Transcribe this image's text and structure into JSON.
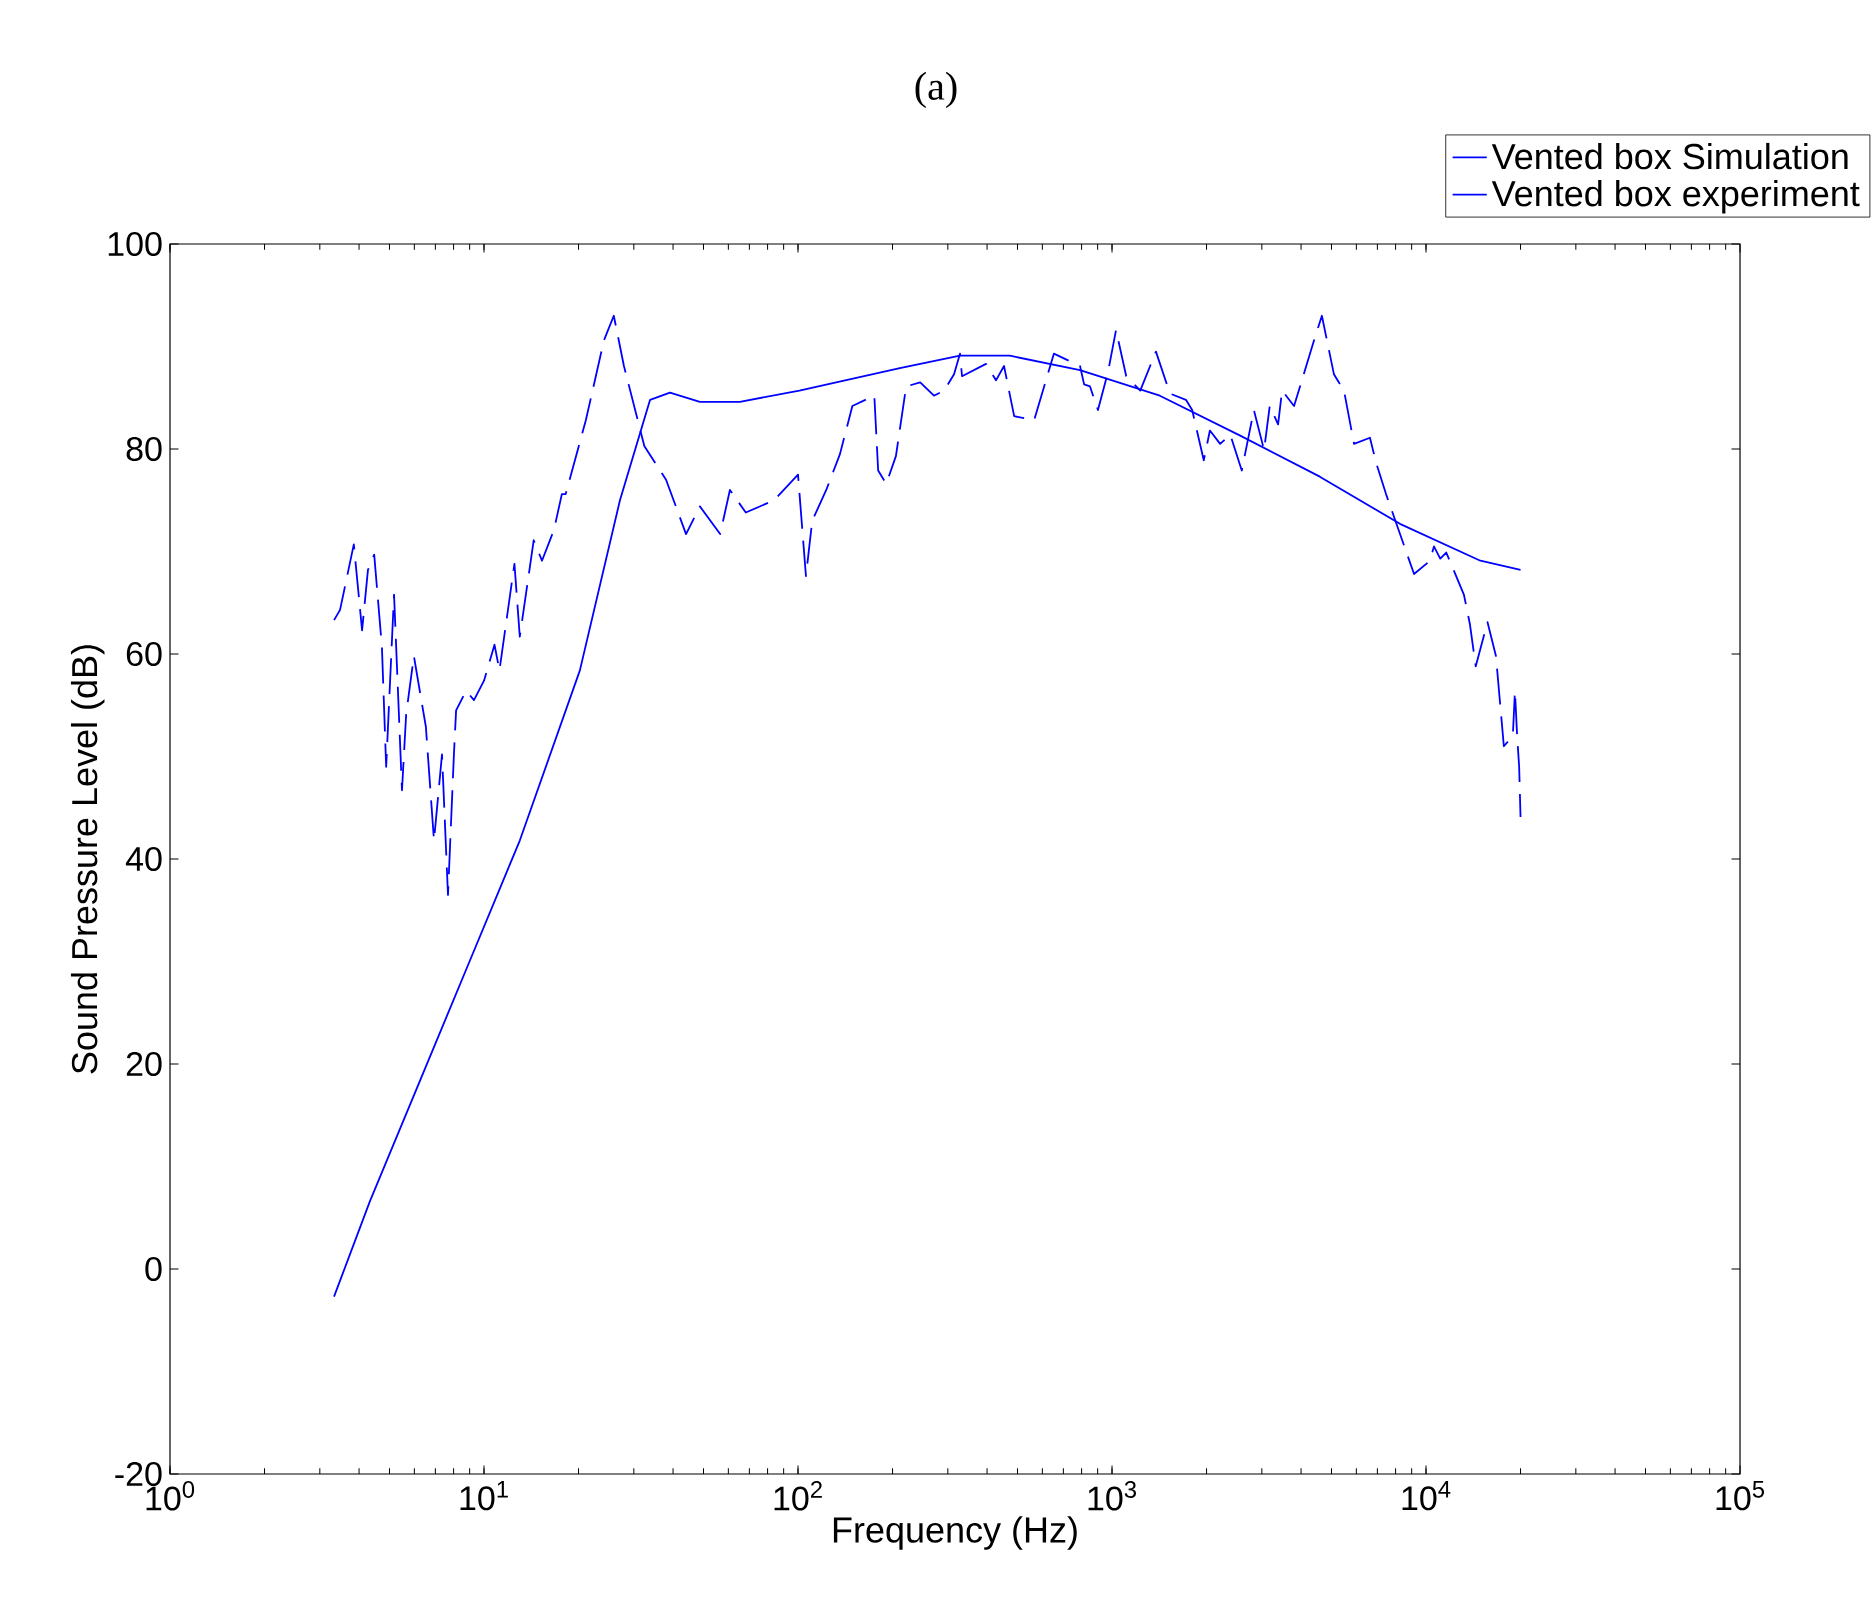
{
  "chart_data": {
    "type": "line",
    "title": "(a)",
    "xlabel": "Frequency (Hz)",
    "ylabel": "Sound Pressure Level (dB)",
    "log": "x",
    "legend": "top right",
    "xlim": [
      1,
      100000
    ],
    "ylim": [
      -20,
      100
    ],
    "xticks": [
      {
        "value": 1,
        "label": "10$^{0}$"
      },
      {
        "value": 10,
        "label": "10$^{1}$"
      },
      {
        "value": 100,
        "label": "10$^{2}$"
      },
      {
        "value": 1000,
        "label": "10$^{3}$"
      },
      {
        "value": 10000,
        "label": "10$^{4}$"
      },
      {
        "value": 100000,
        "label": "10$^{5}$"
      }
    ],
    "yticks": [
      -20,
      0,
      20,
      40,
      60,
      80,
      100
    ],
    "series": [
      {
        "name": "Vented box Simulation",
        "color": "#0000ff",
        "line_style": "solid",
        "x": [
          3.33,
          4.33,
          6.26,
          9.02,
          13.0,
          20.2,
          27.1,
          33.8,
          39.1,
          48.7,
          65.3,
          101,
          211,
          328,
          473,
          791,
          1420,
          2560,
          4590,
          8260,
          14900,
          20000
        ],
        "values": [
          -2.7,
          6.6,
          18.4,
          30.1,
          41.8,
          58.4,
          75,
          84.8,
          85.5,
          84.6,
          84.6,
          85.7,
          87.9,
          89.1,
          89.1,
          87.7,
          85.2,
          81.3,
          77.3,
          72.7,
          69.1,
          68.2
        ]
      },
      {
        "name": "Vented box experiment",
        "color": "#0000ff",
        "line_style": "dashed",
        "x": [
          3.33,
          3.48,
          3.85,
          4.09,
          4.27,
          4.47,
          4.73,
          4.88,
          5.17,
          5.48,
          5.65,
          5.98,
          6.53,
          6.93,
          7.35,
          7.68,
          8.02,
          8.15,
          8.77,
          9.29,
          10.0,
          10.8,
          11.2,
          12.5,
          13.0,
          14.4,
          15.3,
          16.7,
          17.7,
          18.2,
          21.1,
          24.1,
          25.9,
          27.9,
          32.4,
          38.0,
          44.0,
          48.7,
          56.5,
          60.7,
          68.2,
          83.9,
          100,
          106,
          111,
          123,
          136,
          149,
          175,
          180,
          191,
          205,
          221,
          245,
          271,
          292,
          314,
          328,
          333,
          397,
          427,
          453,
          488,
          565,
          653,
          791,
          815,
          851,
          902,
          971,
          1030,
          1110,
          1230,
          1380,
          1530,
          1720,
          1800,
          1960,
          2050,
          2210,
          2380,
          2590,
          2830,
          3050,
          3180,
          3380,
          3480,
          3800,
          4080,
          4400,
          4660,
          5090,
          5480,
          5900,
          6630,
          6930,
          7460,
          9160,
          10300,
          10600,
          11100,
          11600,
          13200,
          13800,
          14400,
          15700,
          16700,
          17700,
          18900,
          19200,
          19500,
          19800,
          20000
        ],
        "values": [
          63.3,
          64.3,
          70.7,
          62.3,
          68.2,
          69.7,
          60.7,
          49,
          65.8,
          46.7,
          54.1,
          59.8,
          52.9,
          41.8,
          50.2,
          36.5,
          50.2,
          54.5,
          56.4,
          55.5,
          57.4,
          60.9,
          58.4,
          68.8,
          61.7,
          71.1,
          69.1,
          72.1,
          75.6,
          75.6,
          82.8,
          90.6,
          93,
          88.1,
          80.3,
          77,
          71.7,
          74.4,
          71.7,
          76,
          73.8,
          75,
          77.5,
          67.6,
          73,
          76,
          79.5,
          84.2,
          85.2,
          77.9,
          76.6,
          79.3,
          86.1,
          86.5,
          85.2,
          85.7,
          87.3,
          89.3,
          87.1,
          88.3,
          86.7,
          88.1,
          83.2,
          82.8,
          89.3,
          88.1,
          86.3,
          86.1,
          83.8,
          87.5,
          91.6,
          87.1,
          85.7,
          89.5,
          85.4,
          84.8,
          83.8,
          78.9,
          81.8,
          80.5,
          81.4,
          77.9,
          83.8,
          79.9,
          84.2,
          82.4,
          85.7,
          84.2,
          87.3,
          90.6,
          93,
          87.3,
          85.7,
          80.5,
          81.1,
          78.7,
          75.6,
          67.8,
          69.1,
          70.5,
          69.3,
          69.9,
          65.8,
          62.9,
          58.8,
          63.1,
          59.8,
          51,
          52,
          56.4,
          52.1,
          49,
          44.1
        ]
      }
    ]
  }
}
